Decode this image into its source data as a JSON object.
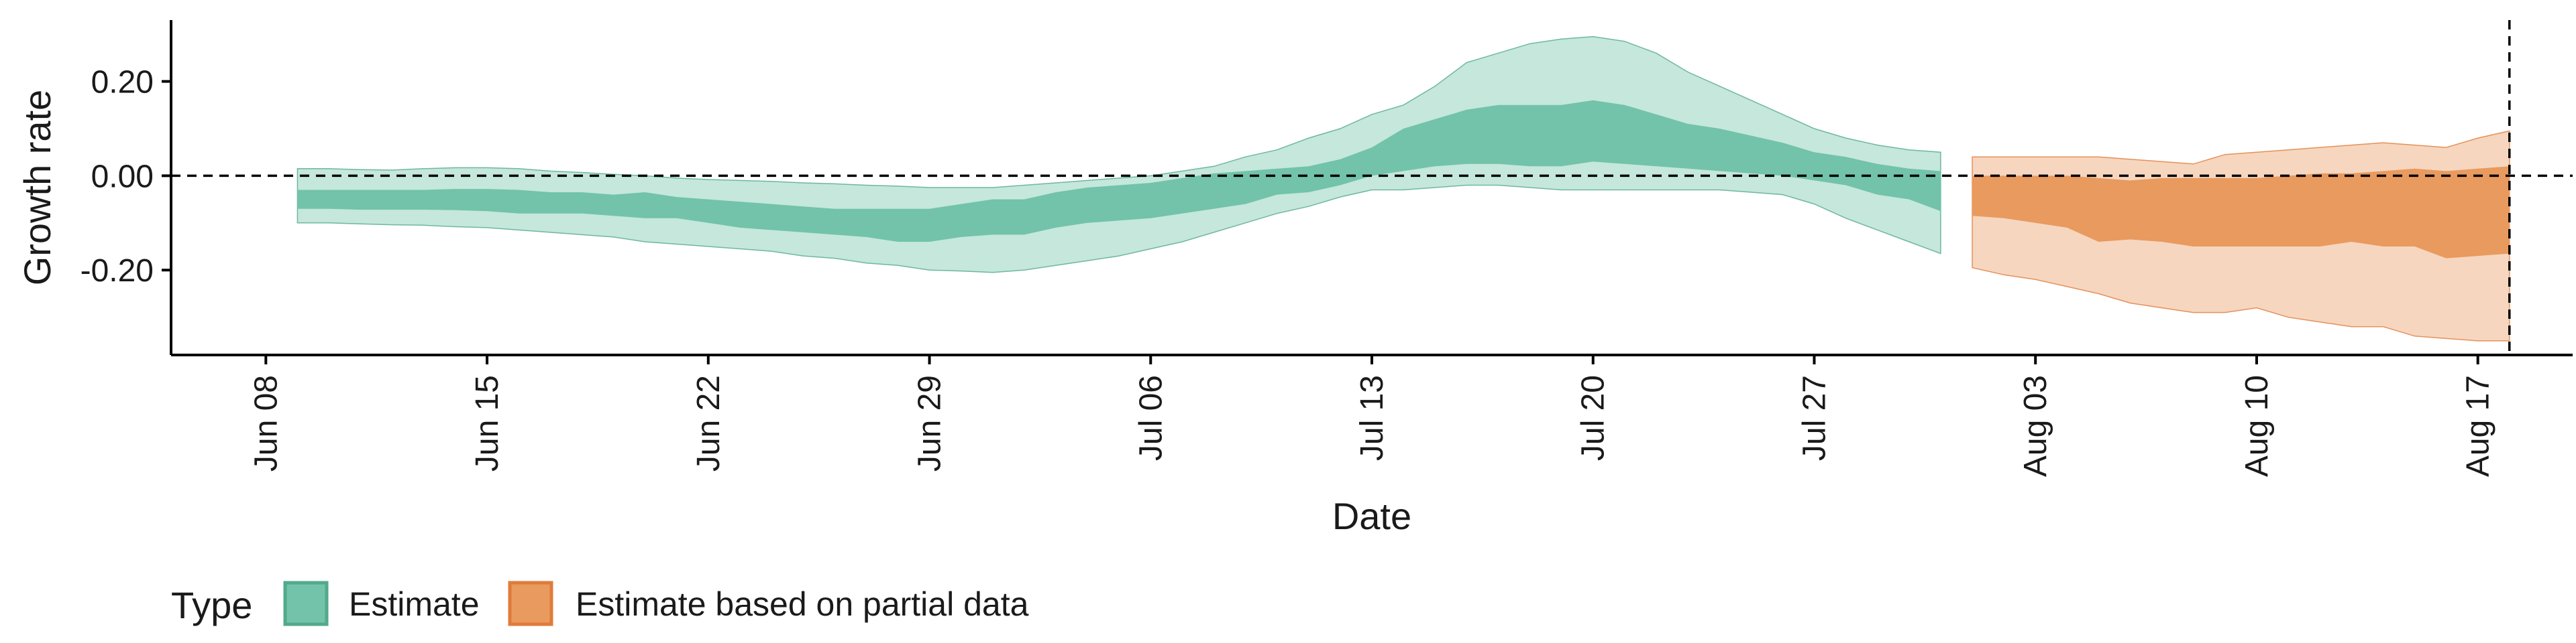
{
  "chart_data": {
    "type": "area",
    "xlabel": "Date",
    "ylabel": "Growth rate",
    "x_tick_labels": [
      "Jun 08",
      "Jun 15",
      "Jun 22",
      "Jun 29",
      "Jul 06",
      "Jul 13",
      "Jul 20",
      "Jul 27",
      "Aug 03",
      "Aug 10",
      "Aug 17"
    ],
    "x_tick_dates": [
      "2020-06-08",
      "2020-06-15",
      "2020-06-22",
      "2020-06-29",
      "2020-07-06",
      "2020-07-13",
      "2020-07-20",
      "2020-07-27",
      "2020-08-03",
      "2020-08-10",
      "2020-08-17"
    ],
    "x_range": [
      "2020-06-05",
      "2020-08-20"
    ],
    "y_tick_values": [
      -0.2,
      0,
      0.2
    ],
    "y_tick_labels": [
      "-0.20",
      "0.00",
      "0.20"
    ],
    "ylim": [
      -0.38,
      0.33
    ],
    "reference_lines": {
      "horizontal_y": 0,
      "vertical_x": "2020-08-18"
    },
    "legend": {
      "title": "Type",
      "position": "bottom-left",
      "entries": [
        "Estimate",
        "Estimate based on partial data"
      ]
    },
    "colors": {
      "estimate_inner": "#72c3a9",
      "estimate_outer": "#c5e7dc",
      "estimate_edge": "#52a98c",
      "partial_inner": "#e99a5f",
      "partial_outer": "#f6d6bf",
      "partial_edge": "#e07b39"
    },
    "series": [
      {
        "name": "Estimate",
        "x": [
          "2020-06-09",
          "2020-06-10",
          "2020-06-11",
          "2020-06-12",
          "2020-06-13",
          "2020-06-14",
          "2020-06-15",
          "2020-06-16",
          "2020-06-17",
          "2020-06-18",
          "2020-06-19",
          "2020-06-20",
          "2020-06-21",
          "2020-06-22",
          "2020-06-23",
          "2020-06-24",
          "2020-06-25",
          "2020-06-26",
          "2020-06-27",
          "2020-06-28",
          "2020-06-29",
          "2020-06-30",
          "2020-07-01",
          "2020-07-02",
          "2020-07-03",
          "2020-07-04",
          "2020-07-05",
          "2020-07-06",
          "2020-07-07",
          "2020-07-08",
          "2020-07-09",
          "2020-07-10",
          "2020-07-11",
          "2020-07-12",
          "2020-07-13",
          "2020-07-14",
          "2020-07-15",
          "2020-07-16",
          "2020-07-17",
          "2020-07-18",
          "2020-07-19",
          "2020-07-20",
          "2020-07-21",
          "2020-07-22",
          "2020-07-23",
          "2020-07-24",
          "2020-07-25",
          "2020-07-26",
          "2020-07-27",
          "2020-07-28",
          "2020-07-29",
          "2020-07-30",
          "2020-07-31"
        ],
        "outer_upper": [
          0.015,
          0.015,
          0.013,
          0.012,
          0.015,
          0.017,
          0.017,
          0.015,
          0.01,
          0.007,
          0.003,
          0.0,
          -0.005,
          -0.008,
          -0.01,
          -0.012,
          -0.015,
          -0.017,
          -0.02,
          -0.022,
          -0.025,
          -0.025,
          -0.025,
          -0.02,
          -0.015,
          -0.01,
          -0.005,
          0.0,
          0.01,
          0.02,
          0.04,
          0.055,
          0.08,
          0.1,
          0.13,
          0.15,
          0.19,
          0.24,
          0.26,
          0.28,
          0.29,
          0.295,
          0.285,
          0.26,
          0.22,
          0.19,
          0.16,
          0.13,
          0.1,
          0.08,
          0.065,
          0.055,
          0.05
        ],
        "inner_upper": [
          -0.03,
          -0.03,
          -0.03,
          -0.03,
          -0.03,
          -0.028,
          -0.028,
          -0.03,
          -0.035,
          -0.035,
          -0.04,
          -0.035,
          -0.045,
          -0.05,
          -0.055,
          -0.06,
          -0.065,
          -0.07,
          -0.07,
          -0.07,
          -0.07,
          -0.06,
          -0.05,
          -0.05,
          -0.035,
          -0.025,
          -0.02,
          -0.015,
          -0.005,
          0.005,
          0.01,
          0.015,
          0.02,
          0.035,
          0.06,
          0.1,
          0.12,
          0.14,
          0.15,
          0.15,
          0.15,
          0.16,
          0.15,
          0.13,
          0.11,
          0.1,
          0.085,
          0.07,
          0.05,
          0.04,
          0.025,
          0.015,
          0.01
        ],
        "inner_lower": [
          -0.07,
          -0.07,
          -0.072,
          -0.072,
          -0.072,
          -0.073,
          -0.075,
          -0.08,
          -0.08,
          -0.08,
          -0.085,
          -0.09,
          -0.09,
          -0.1,
          -0.11,
          -0.115,
          -0.12,
          -0.125,
          -0.13,
          -0.14,
          -0.14,
          -0.13,
          -0.125,
          -0.125,
          -0.11,
          -0.1,
          -0.095,
          -0.09,
          -0.08,
          -0.07,
          -0.06,
          -0.04,
          -0.035,
          -0.02,
          0.0,
          0.01,
          0.02,
          0.025,
          0.025,
          0.02,
          0.02,
          0.03,
          0.025,
          0.02,
          0.015,
          0.01,
          0.005,
          0.0,
          -0.01,
          -0.02,
          -0.04,
          -0.05,
          -0.075
        ],
        "outer_lower": [
          -0.1,
          -0.1,
          -0.102,
          -0.104,
          -0.105,
          -0.108,
          -0.11,
          -0.115,
          -0.12,
          -0.125,
          -0.13,
          -0.14,
          -0.145,
          -0.15,
          -0.155,
          -0.16,
          -0.17,
          -0.175,
          -0.185,
          -0.19,
          -0.2,
          -0.202,
          -0.205,
          -0.2,
          -0.19,
          -0.18,
          -0.17,
          -0.155,
          -0.14,
          -0.12,
          -0.1,
          -0.08,
          -0.065,
          -0.045,
          -0.03,
          -0.03,
          -0.025,
          -0.02,
          -0.02,
          -0.025,
          -0.03,
          -0.03,
          -0.03,
          -0.03,
          -0.03,
          -0.03,
          -0.035,
          -0.04,
          -0.06,
          -0.09,
          -0.115,
          -0.14,
          -0.165
        ]
      },
      {
        "name": "Estimate based on partial data",
        "x": [
          "2020-08-01",
          "2020-08-02",
          "2020-08-03",
          "2020-08-04",
          "2020-08-05",
          "2020-08-06",
          "2020-08-07",
          "2020-08-08",
          "2020-08-09",
          "2020-08-10",
          "2020-08-11",
          "2020-08-12",
          "2020-08-13",
          "2020-08-14",
          "2020-08-15",
          "2020-08-16",
          "2020-08-17",
          "2020-08-18"
        ],
        "outer_upper": [
          0.04,
          0.04,
          0.04,
          0.04,
          0.04,
          0.035,
          0.03,
          0.025,
          0.045,
          0.05,
          0.055,
          0.06,
          0.065,
          0.07,
          0.065,
          0.06,
          0.08,
          0.095
        ],
        "inner_upper": [
          0.0,
          0.0,
          0.0,
          0.0,
          -0.005,
          -0.01,
          -0.005,
          -0.005,
          -0.005,
          -0.005,
          0.0,
          0.005,
          0.005,
          0.01,
          0.015,
          0.01,
          0.015,
          0.02
        ],
        "inner_lower": [
          -0.085,
          -0.09,
          -0.1,
          -0.11,
          -0.14,
          -0.135,
          -0.14,
          -0.15,
          -0.15,
          -0.15,
          -0.15,
          -0.15,
          -0.14,
          -0.15,
          -0.15,
          -0.175,
          -0.17,
          -0.165
        ],
        "outer_lower": [
          -0.195,
          -0.21,
          -0.22,
          -0.235,
          -0.25,
          -0.27,
          -0.28,
          -0.29,
          -0.29,
          -0.28,
          -0.3,
          -0.31,
          -0.32,
          -0.32,
          -0.34,
          -0.345,
          -0.35,
          -0.35
        ]
      }
    ]
  }
}
